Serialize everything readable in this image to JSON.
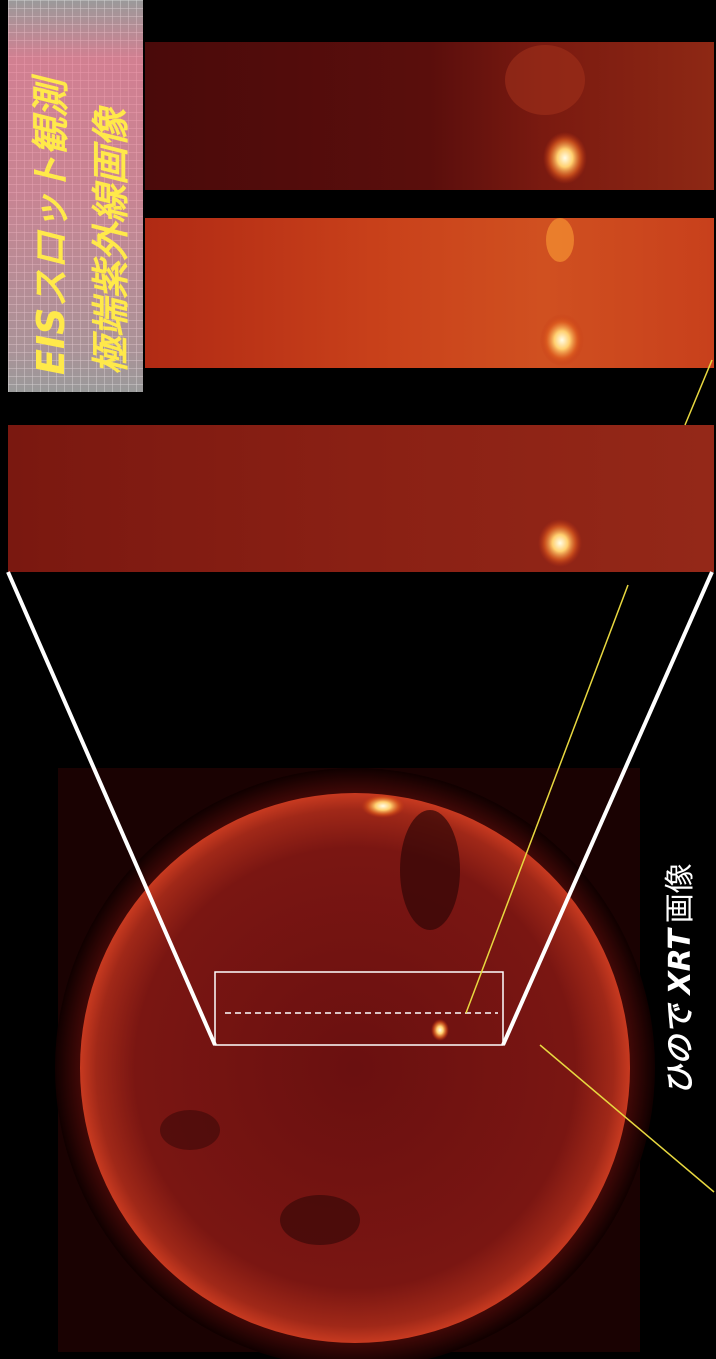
{
  "label": {
    "line1": "EISスロット観測",
    "line2": "極端紫外線画像"
  },
  "xrt_label": {
    "name": "ひので XRT",
    "suffix": "画像"
  }
}
